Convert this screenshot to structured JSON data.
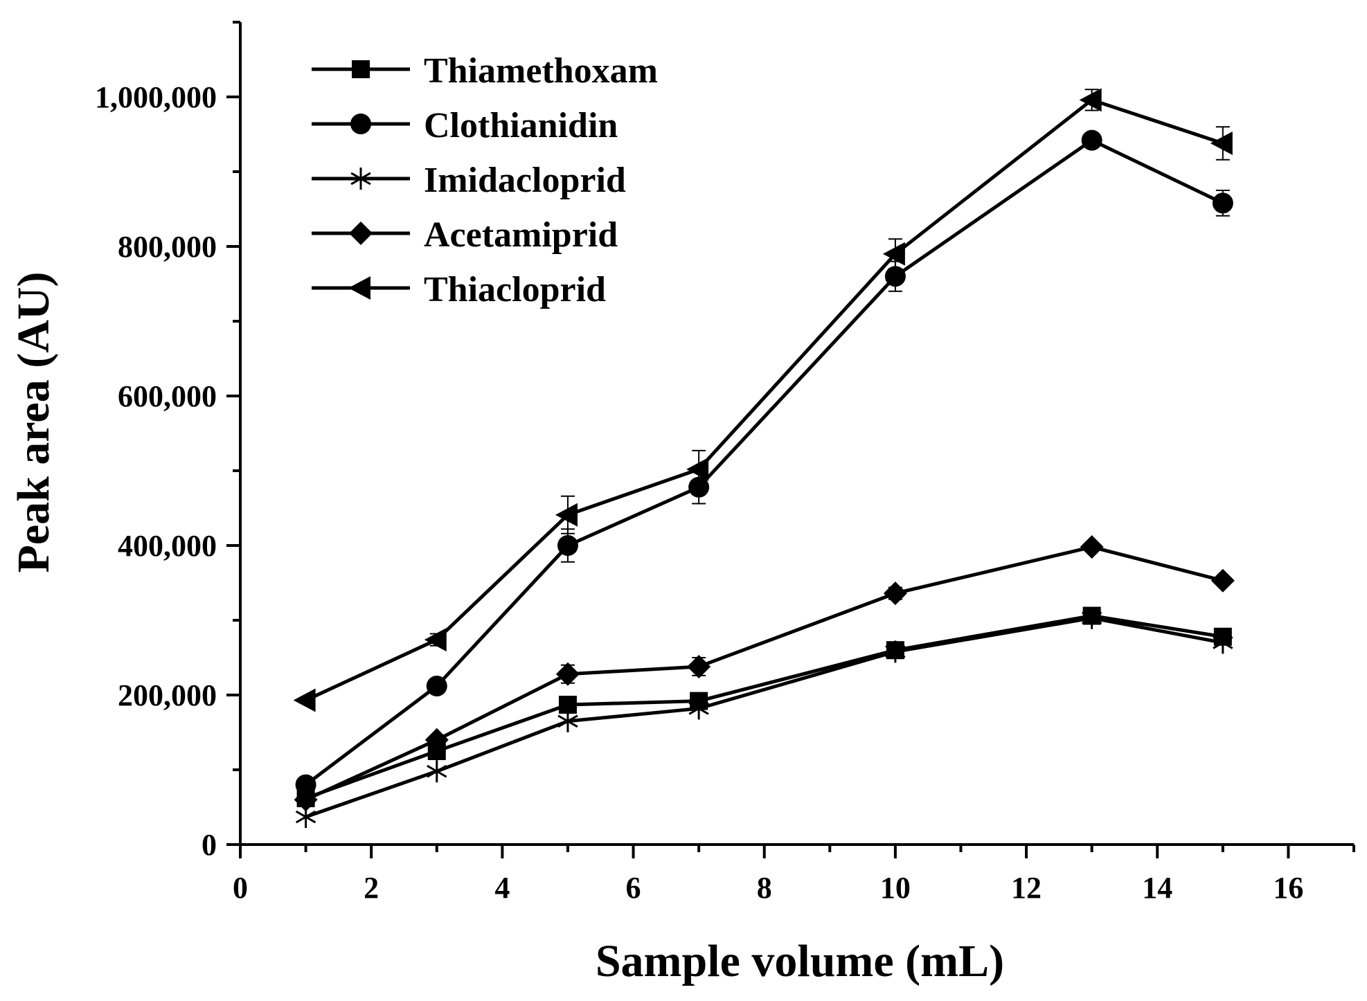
{
  "chart_data": {
    "type": "line",
    "title": "",
    "xlabel": "Sample volume (mL)",
    "ylabel": "Peak area (AU)",
    "xlim": [
      0,
      17
    ],
    "ylim": [
      0,
      1100000
    ],
    "xticks": [
      0,
      2,
      4,
      6,
      8,
      10,
      12,
      14,
      16
    ],
    "xtick_labels": [
      "0",
      "2",
      "4",
      "6",
      "8",
      "10",
      "12",
      "14",
      "16"
    ],
    "yticks": [
      0,
      200000,
      400000,
      600000,
      800000,
      1000000
    ],
    "ytick_labels": [
      "0",
      "200,000",
      "400,000",
      "600,000",
      "800,000",
      "1,000,000"
    ],
    "grid": false,
    "legend_position": "top-left",
    "x": [
      1,
      3,
      5,
      7,
      10,
      13,
      15
    ],
    "series": [
      {
        "name": "Thiamethoxam",
        "marker": "square",
        "values": [
          62000,
          125000,
          187000,
          192000,
          260000,
          306000,
          278000
        ],
        "errors": [
          0,
          0,
          0,
          0,
          0,
          0,
          0
        ]
      },
      {
        "name": "Clothianidin",
        "marker": "circle",
        "values": [
          80000,
          212000,
          400000,
          478000,
          760000,
          942000,
          858000
        ],
        "errors": [
          0,
          0,
          22000,
          22000,
          20000,
          0,
          17000
        ]
      },
      {
        "name": "Imidacloprid",
        "marker": "asterisk",
        "values": [
          37000,
          98000,
          165000,
          182000,
          258000,
          303000,
          270000
        ],
        "errors": [
          0,
          0,
          0,
          0,
          0,
          0,
          0
        ]
      },
      {
        "name": "Acetamiprid",
        "marker": "diamond",
        "values": [
          60000,
          140000,
          228000,
          238000,
          336000,
          398000,
          353000
        ],
        "errors": [
          0,
          0,
          12000,
          12000,
          8000,
          0,
          0
        ]
      },
      {
        "name": "Thiacloprid",
        "marker": "triangle-left",
        "values": [
          193000,
          274000,
          441000,
          502000,
          790000,
          996000,
          938000
        ],
        "errors": [
          0,
          8000,
          25000,
          25000,
          20000,
          14000,
          22000
        ]
      }
    ]
  }
}
